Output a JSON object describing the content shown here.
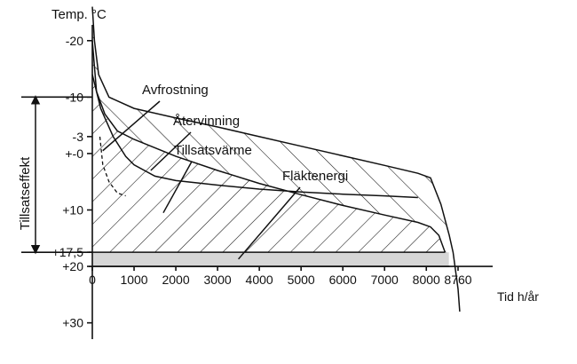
{
  "chart_data": {
    "type": "area",
    "xlabel": "Tid h/år",
    "ylabel": "Temp. °C",
    "side_label": "Tillsatseffekt",
    "x_ticks": [
      "0",
      "1000",
      "2000",
      "3000",
      "4000",
      "5000",
      "6000",
      "7000",
      "8000",
      "8760"
    ],
    "y_ticks": [
      {
        "label": "-20",
        "value": -20
      },
      {
        "label": "-10",
        "value": -10
      },
      {
        "label": "-3",
        "value": -3
      },
      {
        "label": "+-0",
        "value": 0
      },
      {
        "label": "+10",
        "value": 10
      },
      {
        "label": "+17,5",
        "value": 17.5
      },
      {
        "label": "+20",
        "value": 20
      },
      {
        "label": "+30",
        "value": 30
      }
    ],
    "ylim_top_to_bottom": [
      -25,
      31
    ],
    "xlim": [
      0,
      8760
    ],
    "grid": false,
    "curves": {
      "outdoor_duration": [
        [
          0,
          -26
        ],
        [
          50,
          -20
        ],
        [
          150,
          -14
        ],
        [
          400,
          -10
        ],
        [
          1000,
          -8
        ],
        [
          2000,
          -6.3
        ],
        [
          3000,
          -4.7
        ],
        [
          4000,
          -3
        ],
        [
          5000,
          -1.3
        ],
        [
          6000,
          0.4
        ],
        [
          7000,
          2.1
        ],
        [
          7800,
          3.5
        ],
        [
          8100,
          4.3
        ],
        [
          8350,
          9
        ],
        [
          8550,
          14.5
        ],
        [
          8640,
          17.5
        ],
        [
          8760,
          24
        ],
        [
          8800,
          28
        ]
      ],
      "recovery_limit": [
        [
          0,
          -20
        ],
        [
          100,
          -11
        ],
        [
          300,
          -7
        ],
        [
          600,
          -4
        ],
        [
          1000,
          -2.5
        ],
        [
          2000,
          0.5
        ],
        [
          3000,
          3
        ],
        [
          4000,
          5.3
        ],
        [
          5000,
          7.3
        ],
        [
          6000,
          9.2
        ],
        [
          7000,
          10.9
        ],
        [
          7800,
          12.2
        ],
        [
          8100,
          13
        ],
        [
          8300,
          14.5
        ],
        [
          8450,
          17.5
        ]
      ],
      "supplement_limit": [
        [
          0,
          -14
        ],
        [
          200,
          -8
        ],
        [
          500,
          -3
        ],
        [
          800,
          0.5
        ],
        [
          1000,
          2
        ],
        [
          1500,
          4
        ],
        [
          2000,
          4.8
        ],
        [
          3000,
          5.6
        ],
        [
          4000,
          6.3
        ],
        [
          5000,
          6.8
        ],
        [
          6000,
          7.2
        ],
        [
          7000,
          7.5
        ],
        [
          7800,
          7.8
        ]
      ],
      "defrost_dashed": [
        [
          180,
          -3
        ],
        [
          250,
          2
        ],
        [
          400,
          5
        ],
        [
          600,
          7
        ],
        [
          800,
          7.5
        ]
      ]
    },
    "baseline_temp": 17.5,
    "indoor_temp": 20,
    "supplement_range": [
      -10,
      17.5
    ],
    "fill_colors": {
      "flaktenergi_band": "#d6d6d6",
      "hatch": "#111111"
    },
    "annotations": [
      {
        "text": "Avfrostning",
        "target": [
          250,
          -0.5
        ]
      },
      {
        "text": "Återvinning",
        "target": [
          1400,
          3
        ]
      },
      {
        "text": "Tillsatsvärme",
        "target": [
          1700,
          10.5
        ]
      },
      {
        "text": "Fläktenergi",
        "target": [
          3500,
          18.7
        ]
      }
    ]
  }
}
